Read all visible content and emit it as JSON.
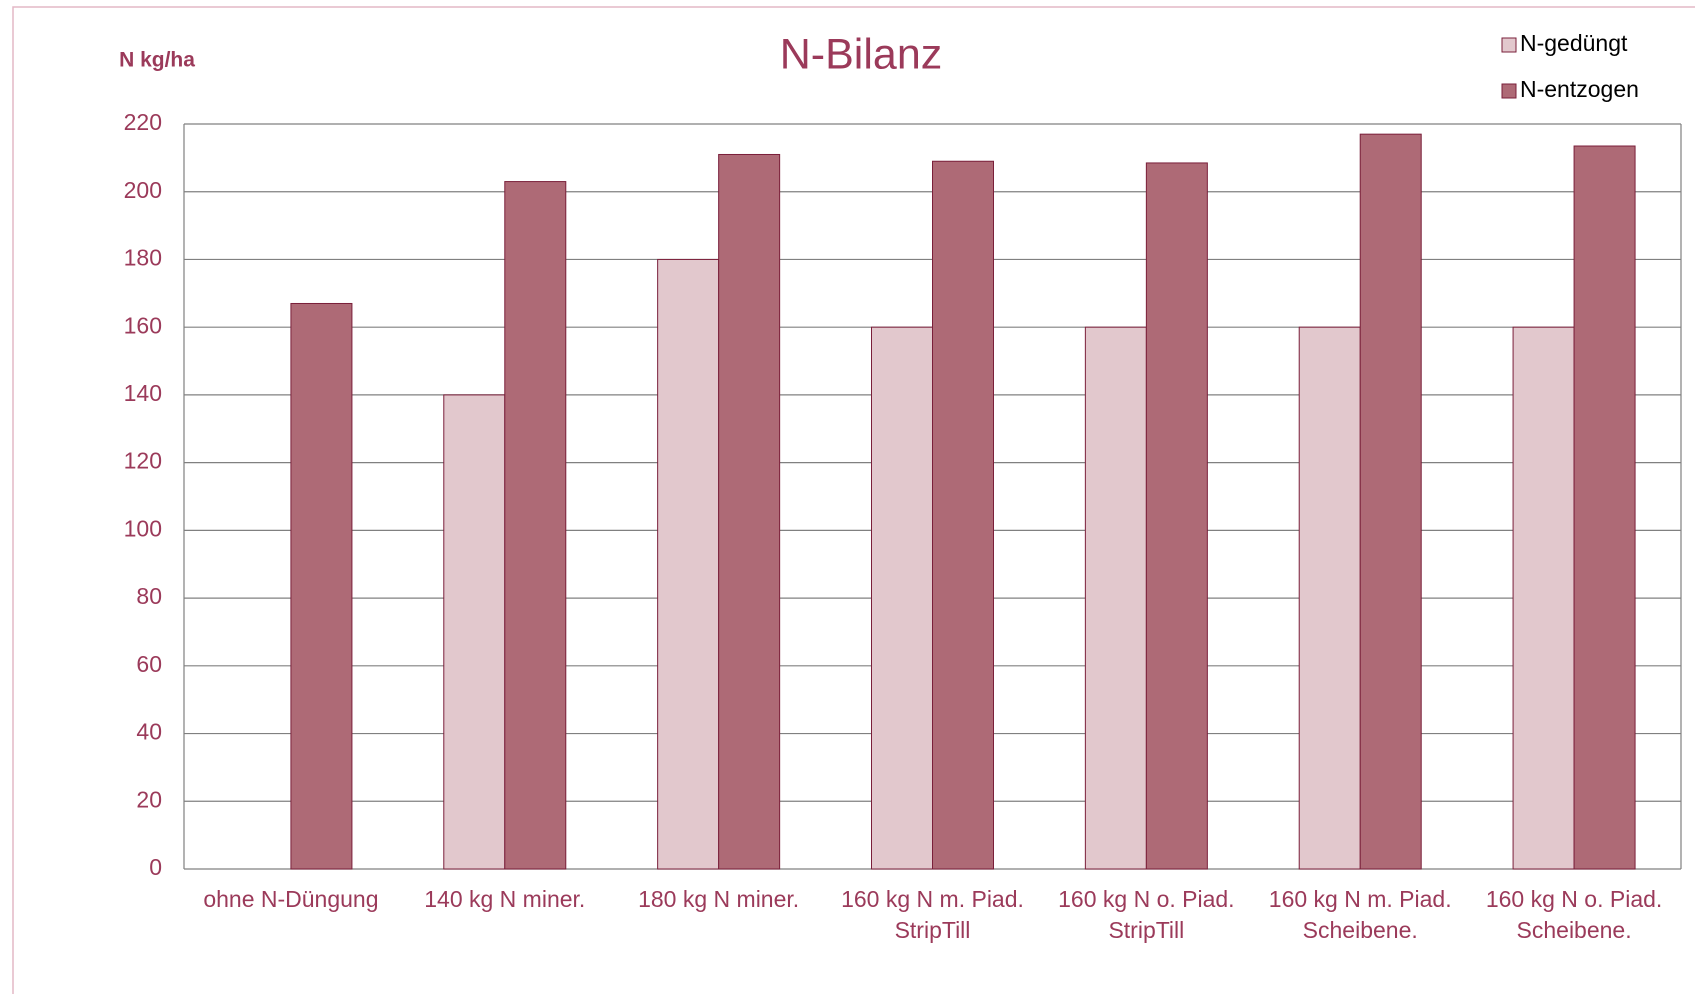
{
  "chart_data": {
    "type": "bar",
    "title": "N-Bilanz",
    "y_label": "N kg/ha",
    "categories": [
      [
        "ohne N-Düngung"
      ],
      [
        "140 kg N miner."
      ],
      [
        "180 kg N miner."
      ],
      [
        "160 kg N m. Piad.",
        "StripTill"
      ],
      [
        "160 kg N o. Piad.",
        "StripTill"
      ],
      [
        "160 kg N m. Piad.",
        "Scheibene."
      ],
      [
        "160 kg N o. Piad.",
        "Scheibene."
      ]
    ],
    "series": [
      {
        "name": "N-gedüngt",
        "color": "#e2c8cd",
        "values": [
          0,
          140,
          180,
          160,
          160,
          160,
          160
        ]
      },
      {
        "name": "N-entzogen",
        "color": "#ae6a76",
        "values": [
          167,
          203,
          211,
          209,
          208.5,
          217,
          213.5
        ]
      }
    ],
    "ylim": [
      0,
      220
    ],
    "yticks": [
      0,
      20,
      40,
      60,
      80,
      100,
      120,
      140,
      160,
      180,
      200,
      220
    ],
    "grid": true,
    "legend": "top-right"
  }
}
